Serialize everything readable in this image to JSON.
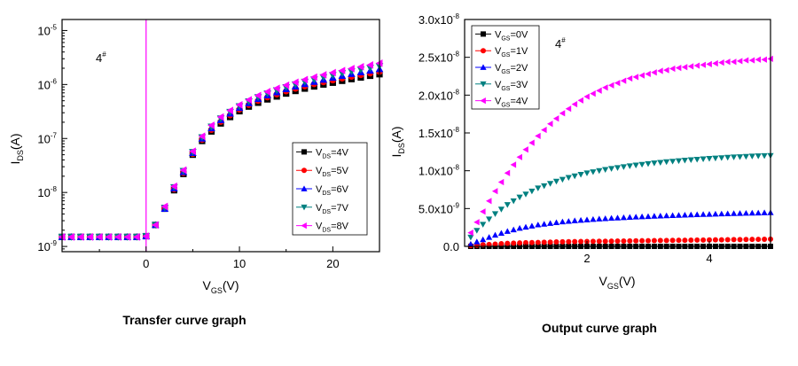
{
  "chart_data": [
    {
      "type": "scatter",
      "caption": "Transfer curve graph",
      "annotation": {
        "text": "4",
        "sup": "#"
      },
      "x_axis": {
        "title": "V",
        "title_sub": "GS",
        "title_unit": "(V)",
        "range": [
          -9,
          25
        ],
        "ticks": [
          0,
          10,
          20
        ],
        "tick_labels": [
          "0",
          "10",
          "20"
        ]
      },
      "y_axis": {
        "title": "I",
        "title_sub": "DS",
        "title_unit": "(A)",
        "scale": "log",
        "range": [
          8e-10,
          1.6e-05
        ],
        "ticks": [
          1e-09,
          1e-08,
          1e-07,
          1e-06,
          1e-05
        ],
        "tick_labels": [
          {
            "base": "10",
            "exp": "-9"
          },
          {
            "base": "10",
            "exp": "-8"
          },
          {
            "base": "10",
            "exp": "-7"
          },
          {
            "base": "10",
            "exp": "-6"
          },
          {
            "base": "10",
            "exp": "-5"
          }
        ]
      },
      "legend": {
        "placement": "right",
        "entries": [
          {
            "prefix": "V",
            "sub": "DS",
            "suffix": "=4V"
          },
          {
            "prefix": "V",
            "sub": "DS",
            "suffix": "=5V"
          },
          {
            "prefix": "V",
            "sub": "DS",
            "suffix": "=6V"
          },
          {
            "prefix": "V",
            "sub": "DS",
            "suffix": "=7V"
          },
          {
            "prefix": "V",
            "sub": "DS",
            "suffix": "=8V"
          }
        ]
      },
      "x": [
        -9,
        -8,
        -7,
        -6,
        -5,
        -4,
        -3,
        -2,
        -1,
        0,
        1,
        2,
        3,
        4,
        5,
        6,
        7,
        8,
        9,
        10,
        11,
        12,
        13,
        14,
        15,
        16,
        17,
        18,
        19,
        20,
        21,
        22,
        23,
        24,
        25
      ],
      "series": [
        {
          "marker": "square",
          "color": "#000000",
          "values": [
            1.5e-09,
            1.5e-09,
            1.5e-09,
            1.5e-09,
            1.5e-09,
            1.5e-09,
            1.5e-09,
            1.5e-09,
            1.5e-09,
            1.55e-09,
            2.5e-09,
            5e-09,
            1.1e-08,
            2.2e-08,
            5e-08,
            9e-08,
            1.35e-07,
            1.9e-07,
            2.5e-07,
            3.2e-07,
            3.9e-07,
            4.6e-07,
            5.3e-07,
            6e-07,
            6.8e-07,
            7.6e-07,
            8.4e-07,
            9.2e-07,
            1e-06,
            1.08e-06,
            1.17e-06,
            1.26e-06,
            1.35e-06,
            1.45e-06,
            1.55e-06
          ]
        },
        {
          "marker": "circle",
          "color": "#ff0000",
          "values": [
            1.5e-09,
            1.5e-09,
            1.5e-09,
            1.5e-09,
            1.5e-09,
            1.5e-09,
            1.5e-09,
            1.5e-09,
            1.5e-09,
            1.55e-09,
            2.5e-09,
            5e-09,
            1.15e-08,
            2.3e-08,
            5.2e-08,
            9.5e-08,
            1.45e-07,
            2.05e-07,
            2.7e-07,
            3.45e-07,
            4.2e-07,
            5e-07,
            5.8e-07,
            6.6e-07,
            7.5e-07,
            8.4e-07,
            9.3e-07,
            1.02e-06,
            1.11e-06,
            1.2e-06,
            1.3e-06,
            1.4e-06,
            1.5e-06,
            1.61e-06,
            1.72e-06
          ]
        },
        {
          "marker": "triangle-up",
          "color": "#0000ff",
          "values": [
            1.5e-09,
            1.5e-09,
            1.5e-09,
            1.5e-09,
            1.5e-09,
            1.5e-09,
            1.5e-09,
            1.5e-09,
            1.5e-09,
            1.55e-09,
            2.5e-09,
            5e-09,
            1.2e-08,
            2.4e-08,
            5.4e-08,
            1e-07,
            1.55e-07,
            2.2e-07,
            2.9e-07,
            3.7e-07,
            4.5e-07,
            5.4e-07,
            6.3e-07,
            7.2e-07,
            8.2e-07,
            9.2e-07,
            1.02e-06,
            1.12e-06,
            1.23e-06,
            1.34e-06,
            1.45e-06,
            1.57e-06,
            1.69e-06,
            1.81e-06,
            1.93e-06
          ]
        },
        {
          "marker": "triangle-down",
          "color": "#008080",
          "values": [
            1.5e-09,
            1.5e-09,
            1.5e-09,
            1.5e-09,
            1.5e-09,
            1.5e-09,
            1.5e-09,
            1.5e-09,
            1.5e-09,
            1.55e-09,
            2.5e-09,
            5.2e-09,
            1.25e-08,
            2.5e-08,
            5.6e-08,
            1.05e-07,
            1.65e-07,
            2.35e-07,
            3.1e-07,
            3.95e-07,
            4.85e-07,
            5.8e-07,
            6.8e-07,
            7.8e-07,
            8.9e-07,
            1e-06,
            1.12e-06,
            1.24e-06,
            1.36e-06,
            1.49e-06,
            1.62e-06,
            1.75e-06,
            1.89e-06,
            2.03e-06,
            2.18e-06
          ]
        },
        {
          "marker": "triangle-left",
          "color": "#ff00ff",
          "values": [
            1.5e-09,
            1.5e-09,
            1.5e-09,
            1.5e-09,
            1.5e-09,
            1.5e-09,
            1.5e-09,
            1.5e-09,
            1.5e-09,
            1.55e-09,
            2.5e-09,
            5.5e-09,
            1.3e-08,
            2.6e-08,
            5.8e-08,
            1.1e-07,
            1.75e-07,
            2.5e-07,
            3.3e-07,
            4.2e-07,
            5.2e-07,
            6.25e-07,
            7.35e-07,
            8.5e-07,
            9.7e-07,
            1.1e-06,
            1.23e-06,
            1.37e-06,
            1.51e-06,
            1.66e-06,
            1.81e-06,
            1.97e-06,
            2.13e-06,
            2.3e-06,
            2.48e-06
          ]
        }
      ],
      "vertical_marker": {
        "x": 0,
        "color": "#ff00ff"
      }
    },
    {
      "type": "scatter",
      "caption": "Output curve graph",
      "annotation": {
        "text": "4",
        "sup": "#"
      },
      "x_axis": {
        "title": "V",
        "title_sub": "GS",
        "title_unit": "(V)",
        "range": [
          0,
          5
        ],
        "ticks": [
          2,
          4
        ],
        "tick_labels": [
          "2",
          "4"
        ]
      },
      "y_axis": {
        "title": "I",
        "title_sub": "DS",
        "title_unit": "(A)",
        "scale": "linear",
        "range": [
          0,
          3e-08
        ],
        "ticks": [
          0,
          5e-09,
          1e-08,
          1.5e-08,
          2e-08,
          2.5e-08,
          3e-08
        ],
        "tick_labels": [
          {
            "base": "0.0",
            "exp": ""
          },
          {
            "base": "5.0x10",
            "exp": "-9"
          },
          {
            "base": "1.0x10",
            "exp": "-8"
          },
          {
            "base": "1.5x10",
            "exp": "-8"
          },
          {
            "base": "2.0x10",
            "exp": "-8"
          },
          {
            "base": "2.5x10",
            "exp": "-8"
          },
          {
            "base": "3.0x10",
            "exp": "-8"
          }
        ]
      },
      "legend": {
        "placement": "top-left",
        "entries": [
          {
            "prefix": "V",
            "sub": "GS",
            "suffix": "=0V"
          },
          {
            "prefix": "V",
            "sub": "GS",
            "suffix": "=1V"
          },
          {
            "prefix": "V",
            "sub": "GS",
            "suffix": "=2V"
          },
          {
            "prefix": "V",
            "sub": "GS",
            "suffix": "=3V"
          },
          {
            "prefix": "V",
            "sub": "GS",
            "suffix": "=4V"
          }
        ]
      },
      "x": [
        0.1,
        0.2,
        0.3,
        0.4,
        0.5,
        0.6,
        0.7,
        0.8,
        0.9,
        1.0,
        1.1,
        1.2,
        1.3,
        1.4,
        1.5,
        1.6,
        1.7,
        1.8,
        1.9,
        2.0,
        2.1,
        2.2,
        2.3,
        2.4,
        2.5,
        2.6,
        2.7,
        2.8,
        2.9,
        3.0,
        3.1,
        3.2,
        3.3,
        3.4,
        3.5,
        3.6,
        3.7,
        3.8,
        3.9,
        4.0,
        4.1,
        4.2,
        4.3,
        4.4,
        4.5,
        4.6,
        4.7,
        4.8,
        4.9,
        5.0
      ],
      "series": [
        {
          "marker": "square",
          "color": "#000000",
          "values": [
            0,
            0,
            0,
            0,
            0,
            0,
            0,
            0,
            0,
            0,
            0,
            0,
            0,
            0,
            0,
            0,
            0,
            0,
            0,
            0,
            0,
            0,
            0,
            0,
            0,
            0,
            0,
            0,
            0,
            0,
            0,
            0,
            0,
            0,
            0,
            0,
            0,
            0,
            0,
            0,
            0,
            0,
            0,
            0,
            0,
            0,
            0,
            0,
            0,
            0
          ]
        },
        {
          "marker": "circle",
          "color": "#ff0000",
          "values": [
            1e-10,
            1.5e-10,
            2e-10,
            2.5e-10,
            3e-10,
            3.5e-10,
            3.9e-10,
            4.2e-10,
            4.5e-10,
            4.8e-10,
            5e-10,
            5.2e-10,
            5.4e-10,
            5.6e-10,
            5.8e-10,
            6e-10,
            6.1e-10,
            6.3e-10,
            6.4e-10,
            6.5e-10,
            6.6e-10,
            6.7e-10,
            6.8e-10,
            6.9e-10,
            7e-10,
            7.1e-10,
            7.2e-10,
            7.3e-10,
            7.4e-10,
            7.5e-10,
            7.6e-10,
            7.7e-10,
            7.8e-10,
            7.9e-10,
            8e-10,
            8.1e-10,
            8.2e-10,
            8.3e-10,
            8.4e-10,
            8.5e-10,
            8.6e-10,
            8.7e-10,
            8.8e-10,
            8.9e-10,
            9e-10,
            9.1e-10,
            9.2e-10,
            9.3e-10,
            9.4e-10,
            9.5e-10
          ]
        },
        {
          "marker": "triangle-up",
          "color": "#0000ff",
          "values": [
            3e-10,
            6e-10,
            9e-10,
            1.2e-09,
            1.5e-09,
            1.75e-09,
            2e-09,
            2.2e-09,
            2.4e-09,
            2.55e-09,
            2.7e-09,
            2.85e-09,
            2.95e-09,
            3.05e-09,
            3.15e-09,
            3.25e-09,
            3.32e-09,
            3.4e-09,
            3.46e-09,
            3.52e-09,
            3.58e-09,
            3.63e-09,
            3.68e-09,
            3.73e-09,
            3.77e-09,
            3.81e-09,
            3.85e-09,
            3.89e-09,
            3.93e-09,
            3.96e-09,
            4e-09,
            4.03e-09,
            4.06e-09,
            4.09e-09,
            4.12e-09,
            4.15e-09,
            4.18e-09,
            4.2e-09,
            4.23e-09,
            4.25e-09,
            4.28e-09,
            4.3e-09,
            4.32e-09,
            4.35e-09,
            4.37e-09,
            4.39e-09,
            4.41e-09,
            4.43e-09,
            4.45e-09,
            4.47e-09
          ]
        },
        {
          "marker": "triangle-down",
          "color": "#008080",
          "values": [
            1.2e-09,
            2.1e-09,
            2.9e-09,
            3.6e-09,
            4.3e-09,
            4.9e-09,
            5.5e-09,
            6e-09,
            6.5e-09,
            6.9e-09,
            7.3e-09,
            7.7e-09,
            8e-09,
            8.3e-09,
            8.6e-09,
            8.85e-09,
            9.1e-09,
            9.3e-09,
            9.5e-09,
            9.7e-09,
            9.85e-09,
            1e-08,
            1.015e-08,
            1.028e-08,
            1.04e-08,
            1.052e-08,
            1.063e-08,
            1.073e-08,
            1.083e-08,
            1.092e-08,
            1.101e-08,
            1.109e-08,
            1.117e-08,
            1.124e-08,
            1.131e-08,
            1.138e-08,
            1.144e-08,
            1.15e-08,
            1.156e-08,
            1.161e-08,
            1.166e-08,
            1.171e-08,
            1.176e-08,
            1.18e-08,
            1.184e-08,
            1.188e-08,
            1.192e-08,
            1.195e-08,
            1.198e-08,
            1.2e-08
          ]
        },
        {
          "marker": "triangle-left",
          "color": "#ff00ff",
          "values": [
            1.8e-09,
            3.2e-09,
            4.6e-09,
            6e-09,
            7.3e-09,
            8.5e-09,
            9.7e-09,
            1.08e-08,
            1.18e-08,
            1.28e-08,
            1.37e-08,
            1.46e-08,
            1.54e-08,
            1.62e-08,
            1.69e-08,
            1.76e-08,
            1.82e-08,
            1.88e-08,
            1.93e-08,
            1.98e-08,
            2.02e-08,
            2.06e-08,
            2.1e-08,
            2.13e-08,
            2.16e-08,
            2.19e-08,
            2.22e-08,
            2.24e-08,
            2.26e-08,
            2.28e-08,
            2.3e-08,
            2.32e-08,
            2.33e-08,
            2.35e-08,
            2.36e-08,
            2.37e-08,
            2.38e-08,
            2.39e-08,
            2.4e-08,
            2.41e-08,
            2.42e-08,
            2.43e-08,
            2.44e-08,
            2.44e-08,
            2.45e-08,
            2.46e-08,
            2.46e-08,
            2.47e-08,
            2.47e-08,
            2.48e-08
          ]
        }
      ]
    }
  ]
}
